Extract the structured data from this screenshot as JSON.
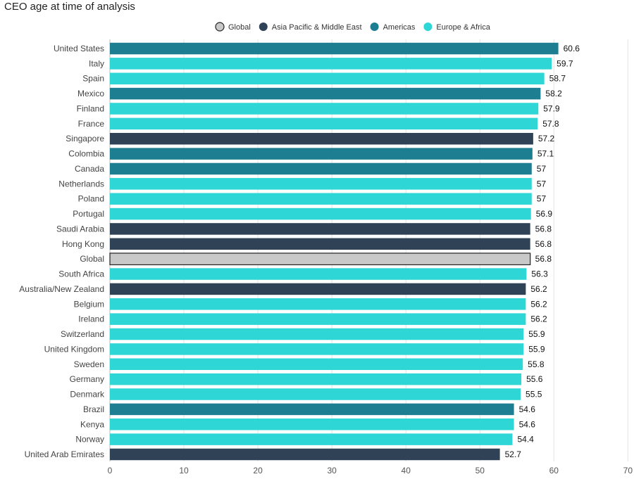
{
  "chart_data": {
    "type": "bar",
    "orientation": "horizontal",
    "title": "CEO age at time of analysis",
    "xlabel": "",
    "ylabel": "",
    "xlim": [
      0,
      70
    ],
    "xticks": [
      0,
      10,
      20,
      30,
      40,
      50,
      60,
      70
    ],
    "grid": true,
    "legend_position": "top",
    "legend": [
      {
        "name": "Global",
        "color": "#c8c8c8",
        "outline": "#222222"
      },
      {
        "name": "Asia Pacific & Middle East",
        "color": "#304256"
      },
      {
        "name": "Americas",
        "color": "#1d7d91"
      },
      {
        "name": "Europe & Africa",
        "color": "#2ed6d6"
      }
    ],
    "bars": [
      {
        "category": "United States",
        "value": 60.6,
        "label": "60.6",
        "group": "Americas"
      },
      {
        "category": "Italy",
        "value": 59.7,
        "label": "59.7",
        "group": "Europe & Africa"
      },
      {
        "category": "Spain",
        "value": 58.7,
        "label": "58.7",
        "group": "Europe & Africa"
      },
      {
        "category": "Mexico",
        "value": 58.2,
        "label": "58.2",
        "group": "Americas"
      },
      {
        "category": "Finland",
        "value": 57.9,
        "label": "57.9",
        "group": "Europe & Africa"
      },
      {
        "category": "France",
        "value": 57.8,
        "label": "57.8",
        "group": "Europe & Africa"
      },
      {
        "category": "Singapore",
        "value": 57.2,
        "label": "57.2",
        "group": "Asia Pacific & Middle East"
      },
      {
        "category": "Colombia",
        "value": 57.1,
        "label": "57.1",
        "group": "Americas"
      },
      {
        "category": "Canada",
        "value": 57,
        "label": "57",
        "group": "Americas"
      },
      {
        "category": "Netherlands",
        "value": 57,
        "label": "57",
        "group": "Europe & Africa"
      },
      {
        "category": "Poland",
        "value": 57,
        "label": "57",
        "group": "Europe & Africa"
      },
      {
        "category": "Portugal",
        "value": 56.9,
        "label": "56.9",
        "group": "Europe & Africa"
      },
      {
        "category": "Saudi Arabia",
        "value": 56.8,
        "label": "56.8",
        "group": "Asia Pacific & Middle East"
      },
      {
        "category": "Hong Kong",
        "value": 56.8,
        "label": "56.8",
        "group": "Asia Pacific & Middle East"
      },
      {
        "category": "Global",
        "value": 56.8,
        "label": "56.8",
        "group": "Global"
      },
      {
        "category": "South Africa",
        "value": 56.3,
        "label": "56.3",
        "group": "Europe & Africa"
      },
      {
        "category": "Australia/New Zealand",
        "value": 56.2,
        "label": "56.2",
        "group": "Asia Pacific & Middle East"
      },
      {
        "category": "Belgium",
        "value": 56.2,
        "label": "56.2",
        "group": "Europe & Africa"
      },
      {
        "category": "Ireland",
        "value": 56.2,
        "label": "56.2",
        "group": "Europe & Africa"
      },
      {
        "category": "Switzerland",
        "value": 55.9,
        "label": "55.9",
        "group": "Europe & Africa"
      },
      {
        "category": "United Kingdom",
        "value": 55.9,
        "label": "55.9",
        "group": "Europe & Africa"
      },
      {
        "category": "Sweden",
        "value": 55.8,
        "label": "55.8",
        "group": "Europe & Africa"
      },
      {
        "category": "Germany",
        "value": 55.6,
        "label": "55.6",
        "group": "Europe & Africa"
      },
      {
        "category": "Denmark",
        "value": 55.5,
        "label": "55.5",
        "group": "Europe & Africa"
      },
      {
        "category": "Brazil",
        "value": 54.6,
        "label": "54.6",
        "group": "Americas"
      },
      {
        "category": "Kenya",
        "value": 54.6,
        "label": "54.6",
        "group": "Europe & Africa"
      },
      {
        "category": "Norway",
        "value": 54.4,
        "label": "54.4",
        "group": "Europe & Africa"
      },
      {
        "category": "United Arab Emirates",
        "value": 52.7,
        "label": "52.7",
        "group": "Asia Pacific & Middle East"
      }
    ]
  }
}
